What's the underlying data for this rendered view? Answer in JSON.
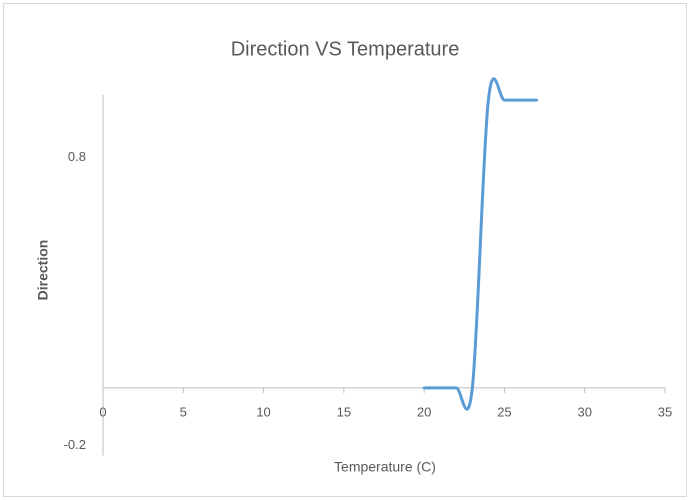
{
  "chart_data": {
    "type": "line",
    "title": "Direction VS Temperature",
    "x_label": "Temperature (C)",
    "y_label": "Direction",
    "x": [
      20,
      21,
      22,
      23,
      24,
      25,
      26,
      27
    ],
    "values": [
      0,
      0,
      0,
      0,
      1,
      1,
      1,
      1
    ],
    "color": "#5b9bd5",
    "smooth": true,
    "xlim": [
      0,
      35
    ],
    "xticks": [
      0,
      5,
      10,
      15,
      20,
      25,
      30,
      35
    ],
    "ylim": [
      -0.2,
      1.2
    ],
    "yticks": [
      -0.2,
      0.8
    ],
    "grid": false
  }
}
